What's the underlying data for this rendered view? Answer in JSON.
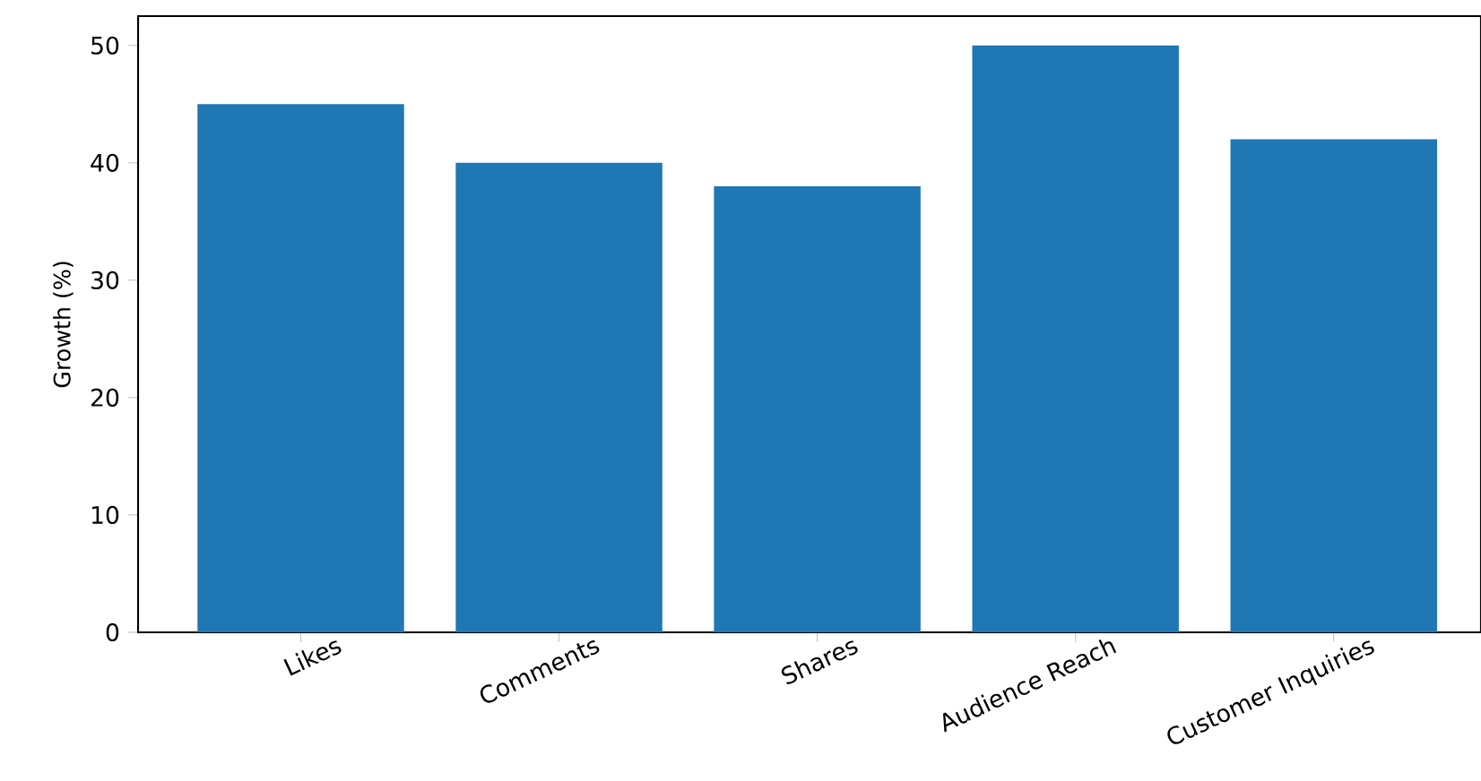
{
  "chart_data": {
    "type": "bar",
    "ylabel": "Growth (%)",
    "categories": [
      "Likes",
      "Comments",
      "Shares",
      "Audience Reach",
      "Customer Inquiries"
    ],
    "values": [
      45,
      40,
      38,
      50,
      42
    ],
    "color": "#1f77b4",
    "ylim": [
      0,
      52.5
    ],
    "yticks": [
      0,
      10,
      20,
      30,
      40,
      50
    ]
  }
}
